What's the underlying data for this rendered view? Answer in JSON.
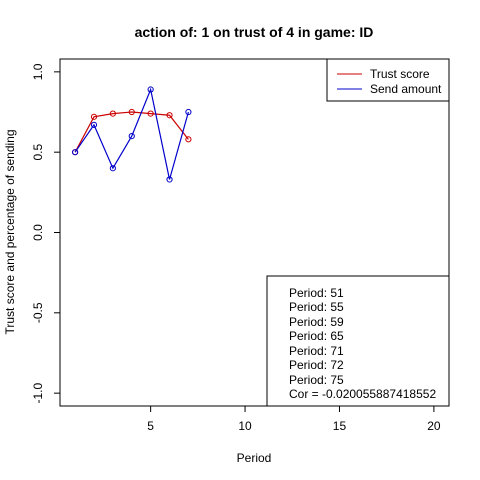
{
  "chart_data": {
    "type": "line",
    "title": "action of:  1  on trust of  4 in game:  ID",
    "xlabel": "Period",
    "ylabel": "Trust score and percentage of sending",
    "xlim": [
      0.2,
      20.8
    ],
    "ylim": [
      -1.08,
      1.08
    ],
    "x_ticks": [
      5,
      10,
      15,
      20
    ],
    "x_tick_labels": [
      "5",
      "10",
      "15",
      "20"
    ],
    "y_ticks": [
      -1.0,
      -0.5,
      0.0,
      0.5,
      1.0
    ],
    "y_tick_labels": [
      "-1.0",
      "-0.5",
      "0.0",
      "0.5",
      "1.0"
    ],
    "series": [
      {
        "name": "Trust score",
        "color": "#cc0000",
        "x": [
          1,
          2,
          3,
          4,
          5,
          6,
          7
        ],
        "y": [
          0.5,
          0.72,
          0.74,
          0.75,
          0.74,
          0.73,
          0.58
        ]
      },
      {
        "name": "Send amount",
        "color": "#0000cc",
        "x": [
          1,
          2,
          3,
          4,
          5,
          6,
          7
        ],
        "y": [
          0.5,
          0.67,
          0.4,
          0.6,
          0.89,
          0.33,
          0.75
        ]
      }
    ],
    "legend": {
      "position": "top-right",
      "entries": [
        "Trust score",
        "Send amount"
      ]
    },
    "info_box": {
      "position": "bottom-right",
      "lines": [
        "Period:  51",
        "Period:  55",
        "Period:  59",
        "Period:  65",
        "Period:  71",
        "Period:  72",
        "Period:  75",
        "Cor =  -0.020055887418552"
      ]
    },
    "grid": false
  }
}
